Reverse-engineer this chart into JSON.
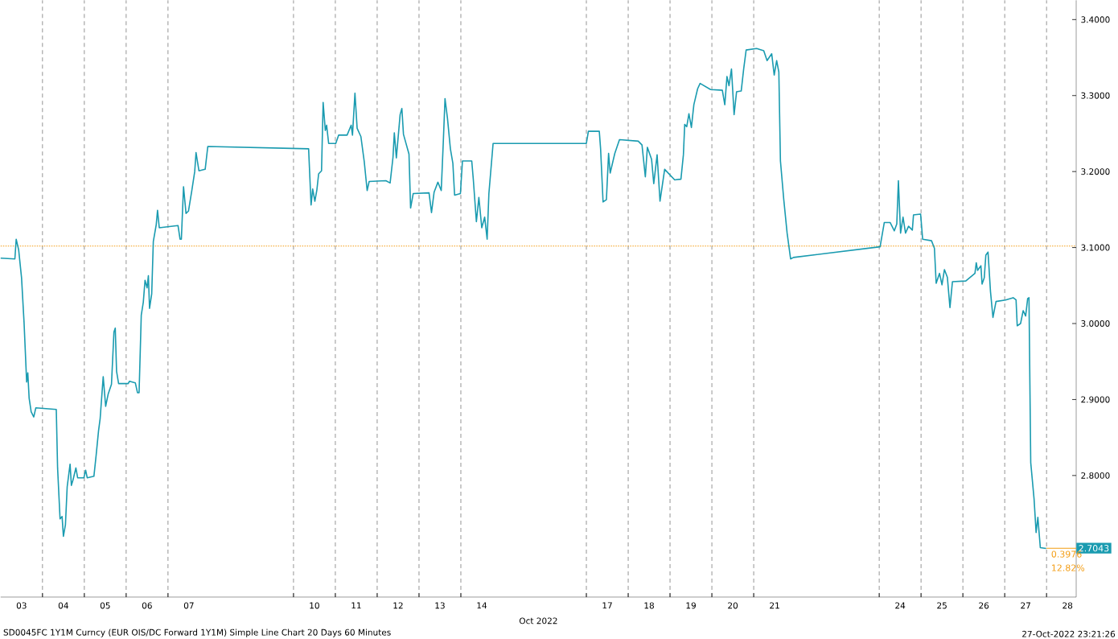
{
  "chart_data": {
    "type": "line",
    "title": "SD0045FC 1Y1M Curncy (EUR OIS/DC Forward 1Y1M) Simple Line Chart 20 Days 60 Minutes",
    "xlabel": "Oct 2022",
    "x": [
      "2022-10-03T00:00",
      "2022-10-03T08:10",
      "2022-10-03T08:55",
      "2022-10-03T10:20",
      "2022-10-03T12:00",
      "2022-10-03T13:25",
      "2022-10-03T14:55",
      "2022-10-03T15:35",
      "2022-10-03T16:20",
      "2022-10-03T17:30",
      "2022-10-03T19:00",
      "2022-10-03T20:10",
      "2022-10-04T07:55",
      "2022-10-04T08:40",
      "2022-10-04T10:05",
      "2022-10-04T11:15",
      "2022-10-04T12:00",
      "2022-10-04T13:10",
      "2022-10-04T14:10",
      "2022-10-04T15:50",
      "2022-10-04T16:35",
      "2022-10-04T17:30",
      "2022-10-04T19:10",
      "2022-10-04T20:10",
      "2022-10-04T23:45",
      "2022-10-05T00:45",
      "2022-10-05T01:40",
      "2022-10-05T05:30",
      "2022-10-05T06:45",
      "2022-10-05T08:10",
      "2022-10-05T09:05",
      "2022-10-05T10:50",
      "2022-10-05T12:15",
      "2022-10-05T13:40",
      "2022-10-05T15:35",
      "2022-10-05T17:00",
      "2022-10-05T17:45",
      "2022-10-05T18:30",
      "2022-10-05T19:40",
      "2022-10-06T01:10",
      "2022-10-06T01:55",
      "2022-10-06T05:15",
      "2022-10-06T06:30",
      "2022-10-06T07:25",
      "2022-10-06T08:40",
      "2022-10-06T09:50",
      "2022-10-06T10:50",
      "2022-10-06T12:00",
      "2022-10-06T12:45",
      "2022-10-06T13:25",
      "2022-10-06T14:40",
      "2022-10-06T15:35",
      "2022-10-06T17:15",
      "2022-10-06T18:00",
      "2022-10-06T19:00",
      "2022-10-07T05:45",
      "2022-10-07T06:55",
      "2022-10-07T07:40",
      "2022-10-07T08:55",
      "2022-10-07T10:20",
      "2022-10-07T11:45",
      "2022-10-07T13:40",
      "2022-10-07T15:20",
      "2022-10-07T16:05",
      "2022-10-07T17:45",
      "2022-10-07T21:20",
      "2022-10-07T22:50",
      "2022-10-10T08:40",
      "2022-10-10T10:05",
      "2022-10-10T11:00",
      "2022-10-10T12:15",
      "2022-10-10T13:25",
      "2022-10-10T14:25",
      "2022-10-10T16:05",
      "2022-10-10T17:00",
      "2022-10-10T18:15",
      "2022-10-10T19:00",
      "2022-10-10T20:10",
      "2022-10-11T00:15",
      "2022-10-11T01:55",
      "2022-10-11T06:45",
      "2022-10-11T09:05",
      "2022-10-11T09:50",
      "2022-10-11T11:15",
      "2022-10-11T12:30",
      "2022-10-11T14:40",
      "2022-10-11T16:35",
      "2022-10-11T18:15",
      "2022-10-11T19:25",
      "2022-10-12T05:00",
      "2022-10-12T07:25",
      "2022-10-12T09:05",
      "2022-10-12T09:50",
      "2022-10-12T11:00",
      "2022-10-12T13:10",
      "2022-10-12T14:10",
      "2022-10-12T15:05",
      "2022-10-12T18:15",
      "2022-10-12T19:10",
      "2022-10-12T20:40",
      "2022-10-13T05:45",
      "2022-10-13T07:10",
      "2022-10-13T08:40",
      "2022-10-13T10:50",
      "2022-10-13T12:45",
      "2022-10-13T13:55",
      "2022-10-13T14:55",
      "2022-10-13T16:20",
      "2022-10-13T18:00",
      "2022-10-13T19:25",
      "2022-10-13T20:25",
      "2022-10-13T23:45",
      "2022-10-14T00:55",
      "2022-10-14T06:15",
      "2022-10-14T07:10",
      "2022-10-14T08:55",
      "2022-10-14T10:20",
      "2022-10-14T12:00",
      "2022-10-14T13:40",
      "2022-10-14T15:05",
      "2022-10-14T16:05",
      "2022-10-14T18:30",
      "2022-10-17T00:00",
      "2022-10-17T01:10",
      "2022-10-17T07:25",
      "2022-10-17T08:10",
      "2022-10-17T09:35",
      "2022-10-17T11:30",
      "2022-10-17T12:45",
      "2022-10-17T13:40",
      "2022-10-17T16:20",
      "2022-10-17T19:00",
      "2022-10-18T05:45",
      "2022-10-18T07:55",
      "2022-10-18T09:50",
      "2022-10-18T11:00",
      "2022-10-18T13:25",
      "2022-10-18T14:40",
      "2022-10-18T16:35",
      "2022-10-18T18:15",
      "2022-10-18T20:55",
      "2022-10-19T02:40",
      "2022-10-19T06:15",
      "2022-10-19T07:40",
      "2022-10-19T08:25",
      "2022-10-19T09:35",
      "2022-10-19T10:50",
      "2022-10-19T12:15",
      "2022-10-19T13:40",
      "2022-10-19T15:50",
      "2022-10-19T17:15",
      "2022-10-19T23:15",
      "2022-10-20T06:00",
      "2022-10-20T07:25",
      "2022-10-20T08:40",
      "2022-10-20T09:50",
      "2022-10-20T11:15",
      "2022-10-20T12:45",
      "2022-10-20T14:10",
      "2022-10-20T16:50",
      "2022-10-20T18:15",
      "2022-10-20T19:40",
      "2022-10-21T01:40",
      "2022-10-21T05:45",
      "2022-10-21T07:40",
      "2022-10-21T10:20",
      "2022-10-21T11:45",
      "2022-10-21T13:10",
      "2022-10-21T14:25",
      "2022-10-21T15:20",
      "2022-10-21T17:15",
      "2022-10-21T19:10",
      "2022-10-21T21:10",
      "2022-10-21T22:50",
      "2022-10-24T00:30",
      "2022-10-24T02:55",
      "2022-10-24T06:15",
      "2022-10-24T08:40",
      "2022-10-24T10:05",
      "2022-10-24T11:00",
      "2022-10-24T12:15",
      "2022-10-24T13:40",
      "2022-10-24T15:05",
      "2022-10-24T16:50",
      "2022-10-24T19:00",
      "2022-10-24T19:40",
      "2022-10-24T23:45",
      "2022-10-25T00:55",
      "2022-10-25T06:00",
      "2022-10-25T07:40",
      "2022-10-25T08:40",
      "2022-10-25T10:35",
      "2022-10-25T12:00",
      "2022-10-25T13:25",
      "2022-10-25T15:05",
      "2022-10-25T16:35",
      "2022-10-25T18:00",
      "2022-10-26T01:40",
      "2022-10-26T06:55",
      "2022-10-26T07:40",
      "2022-10-26T08:25",
      "2022-10-26T10:20",
      "2022-10-26T11:00",
      "2022-10-26T12:15",
      "2022-10-26T13:10",
      "2022-10-26T14:25",
      "2022-10-26T15:50",
      "2022-10-26T17:15",
      "2022-10-26T19:00",
      "2022-10-27T00:30",
      "2022-10-27T04:50",
      "2022-10-27T06:30",
      "2022-10-27T07:10",
      "2022-10-27T09:05",
      "2022-10-27T10:35",
      "2022-10-27T12:00",
      "2022-10-27T13:10",
      "2022-10-27T13:55",
      "2022-10-27T14:55",
      "2022-10-27T16:50",
      "2022-10-27T18:00",
      "2022-10-27T19:00",
      "2022-10-27T20:25",
      "2022-10-27T23:45"
    ],
    "series": [
      {
        "color": "#1a9bb0",
        "values": [
          3.086,
          3.085,
          3.111,
          3.097,
          3.06,
          3.002,
          2.923,
          2.935,
          2.902,
          2.884,
          2.877,
          2.889,
          2.887,
          2.81,
          2.743,
          2.746,
          2.72,
          2.735,
          2.785,
          2.815,
          2.787,
          2.794,
          2.81,
          2.797,
          2.797,
          2.807,
          2.797,
          2.799,
          2.826,
          2.859,
          2.875,
          2.93,
          2.891,
          2.907,
          2.92,
          2.989,
          2.994,
          2.937,
          2.921,
          2.921,
          2.924,
          2.922,
          2.909,
          2.909,
          3.011,
          3.028,
          3.057,
          3.047,
          3.063,
          3.02,
          3.039,
          3.108,
          3.13,
          3.149,
          3.126,
          3.129,
          3.111,
          3.111,
          3.18,
          3.145,
          3.148,
          3.175,
          3.2,
          3.225,
          3.201,
          3.203,
          3.233,
          3.23,
          3.156,
          3.177,
          3.161,
          3.176,
          3.197,
          3.201,
          3.291,
          3.254,
          3.261,
          3.237,
          3.237,
          3.248,
          3.248,
          3.261,
          3.248,
          3.303,
          3.257,
          3.246,
          3.213,
          3.175,
          3.187,
          3.188,
          3.185,
          3.219,
          3.251,
          3.218,
          3.275,
          3.283,
          3.249,
          3.223,
          3.152,
          3.171,
          3.172,
          3.146,
          3.173,
          3.186,
          3.175,
          3.238,
          3.296,
          3.27,
          3.23,
          3.211,
          3.169,
          3.171,
          3.214,
          3.214,
          3.189,
          3.134,
          3.166,
          3.126,
          3.14,
          3.111,
          3.171,
          3.237,
          3.237,
          3.253,
          3.253,
          3.23,
          3.16,
          3.163,
          3.224,
          3.198,
          3.224,
          3.242,
          3.24,
          3.235,
          3.193,
          3.232,
          3.216,
          3.184,
          3.222,
          3.161,
          3.203,
          3.189,
          3.19,
          3.222,
          3.262,
          3.259,
          3.276,
          3.258,
          3.288,
          3.309,
          3.316,
          3.308,
          3.307,
          3.288,
          3.325,
          3.313,
          3.335,
          3.275,
          3.305,
          3.306,
          3.335,
          3.36,
          3.362,
          3.359,
          3.346,
          3.355,
          3.327,
          3.346,
          3.331,
          3.214,
          3.163,
          3.119,
          3.085,
          3.087,
          3.101,
          3.133,
          3.133,
          3.122,
          3.131,
          3.188,
          3.119,
          3.14,
          3.119,
          3.128,
          3.123,
          3.143,
          3.144,
          3.111,
          3.109,
          3.099,
          3.053,
          3.066,
          3.051,
          3.071,
          3.061,
          3.021,
          3.055,
          3.056,
          3.066,
          3.08,
          3.07,
          3.076,
          3.052,
          3.06,
          3.09,
          3.094,
          3.042,
          3.008,
          3.029,
          3.031,
          3.034,
          3.031,
          2.997,
          3.0,
          3.017,
          3.01,
          3.033,
          3.034,
          2.817,
          2.769,
          2.725,
          2.745,
          2.705,
          2.704
        ]
      }
    ],
    "xlim": [
      "2022-10-03T00:00",
      "2022-10-28T17:00"
    ],
    "ylim": [
      2.64,
      3.4254
    ],
    "xticks": [
      {
        "value": "2022-10-03T12:00",
        "label": "03"
      },
      {
        "value": "2022-10-04T12:00",
        "label": "04"
      },
      {
        "value": "2022-10-05T12:00",
        "label": "05"
      },
      {
        "value": "2022-10-06T12:00",
        "label": "06"
      },
      {
        "value": "2022-10-07T12:00",
        "label": "07"
      },
      {
        "value": "2022-10-10T12:00",
        "label": "10"
      },
      {
        "value": "2022-10-11T12:00",
        "label": "11"
      },
      {
        "value": "2022-10-12T12:00",
        "label": "12"
      },
      {
        "value": "2022-10-13T12:00",
        "label": "13"
      },
      {
        "value": "2022-10-14T12:00",
        "label": "14"
      },
      {
        "value": "2022-10-17T12:00",
        "label": "17"
      },
      {
        "value": "2022-10-18T12:00",
        "label": "18"
      },
      {
        "value": "2022-10-19T12:00",
        "label": "19"
      },
      {
        "value": "2022-10-20T12:00",
        "label": "20"
      },
      {
        "value": "2022-10-21T12:00",
        "label": "21"
      },
      {
        "value": "2022-10-24T12:00",
        "label": "24"
      },
      {
        "value": "2022-10-25T12:00",
        "label": "25"
      },
      {
        "value": "2022-10-26T12:00",
        "label": "26"
      },
      {
        "value": "2022-10-27T12:00",
        "label": "27"
      },
      {
        "value": "2022-10-28T12:00",
        "label": "28"
      },
      {
        "value": "2022-10-04T00:00",
        "label": null
      },
      {
        "value": "2022-10-05T00:00",
        "label": null
      },
      {
        "value": "2022-10-06T00:00",
        "label": null
      },
      {
        "value": "2022-10-07T00:00",
        "label": null
      },
      {
        "value": "2022-10-10T00:00",
        "label": null
      },
      {
        "value": "2022-10-11T00:00",
        "label": null
      },
      {
        "value": "2022-10-12T00:00",
        "label": null
      },
      {
        "value": "2022-10-13T00:00",
        "label": null
      },
      {
        "value": "2022-10-14T00:00",
        "label": null
      },
      {
        "value": "2022-10-17T00:00",
        "label": null
      },
      {
        "value": "2022-10-18T00:00",
        "label": null
      },
      {
        "value": "2022-10-19T00:00",
        "label": null
      },
      {
        "value": "2022-10-20T00:00",
        "label": null
      },
      {
        "value": "2022-10-21T00:00",
        "label": null
      },
      {
        "value": "2022-10-24T00:00",
        "label": null
      },
      {
        "value": "2022-10-25T00:00",
        "label": null
      },
      {
        "value": "2022-10-26T00:00",
        "label": null
      },
      {
        "value": "2022-10-27T00:00",
        "label": null
      },
      {
        "value": "2022-10-28T00:00",
        "label": null
      }
    ],
    "yticks": [
      {
        "value": 2.8,
        "label": "2.8000"
      },
      {
        "value": 2.9,
        "label": "2.9000"
      },
      {
        "value": 3.0,
        "label": "3.0000"
      },
      {
        "value": 3.1,
        "label": "3.1000"
      },
      {
        "value": 3.2,
        "label": "3.2000"
      },
      {
        "value": 3.3,
        "label": "3.3000"
      },
      {
        "value": 3.4,
        "label": "3.4000"
      }
    ],
    "ref_lines": [
      {
        "axis": "y",
        "value": 3.1019,
        "color": "#f39c12",
        "line_style": "dotted"
      },
      {
        "axis": "y",
        "value": 2.7043,
        "label": "2.7043",
        "color": "#f39c12",
        "line_style": "solid"
      }
    ],
    "annotations": [
      "0.3976",
      "12.82%",
      "27-Oct-2022 23:21:26"
    ],
    "grid": "x",
    "marker": "none",
    "line_style": "solid"
  }
}
